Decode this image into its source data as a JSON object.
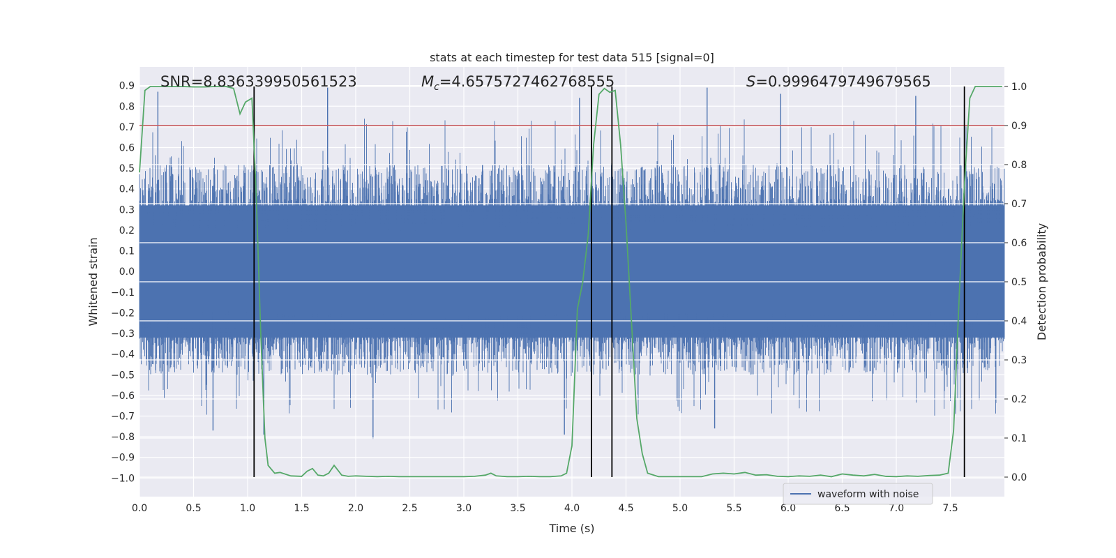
{
  "chart_data": {
    "type": "line",
    "title": "stats at each timestep for test data 515 [signal=0]",
    "xlabel": "Time (s)",
    "ylabel": "Whitened strain",
    "y2label": "Detection probability",
    "xlim": [
      0.0,
      8.0
    ],
    "ylim": [
      -1.09,
      0.99
    ],
    "y2lim": [
      -0.05,
      1.05
    ],
    "x_ticks": [
      "0.0",
      "0.5",
      "1.0",
      "1.5",
      "2.0",
      "2.5",
      "3.0",
      "3.5",
      "4.0",
      "4.5",
      "5.0",
      "5.5",
      "6.0",
      "6.5",
      "7.0",
      "7.5"
    ],
    "y_ticks": [
      "0.9",
      "0.8",
      "0.7",
      "0.6",
      "0.5",
      "0.4",
      "0.3",
      "0.2",
      "0.1",
      "0.0",
      "−0.1",
      "−0.2",
      "−0.3",
      "−0.4",
      "−0.5",
      "−0.6",
      "−0.7",
      "−0.8",
      "−0.9",
      "−1.0"
    ],
    "y2_ticks": [
      "1.0",
      "0.9",
      "0.8",
      "0.7",
      "0.6",
      "0.5",
      "0.4",
      "0.3",
      "0.2",
      "0.1",
      "0.0"
    ],
    "annotations": {
      "snr": "SNR=8.836339950561523",
      "mc_symbol": "M",
      "mc_sub": "c",
      "mc_value": "=4.6575727462768555",
      "s_symbol": "S",
      "s_value": "=0.9996479749679565"
    },
    "threshold": {
      "y2": 0.9,
      "color": "#c44e52"
    },
    "vertical_lines": [
      1.06,
      4.18,
      4.37,
      7.63
    ],
    "grid": true,
    "legend": {
      "position": "lower-right",
      "entries": [
        "waveform with noise"
      ]
    },
    "series": [
      {
        "name": "waveform with noise",
        "axis": "left",
        "color": "#4c72b0",
        "style": "dense-noise",
        "t_range": [
          0.0,
          8.0
        ],
        "core_range": [
          -0.32,
          0.32
        ],
        "spike_peaks": [
          {
            "t": 0.17,
            "y": 0.87
          },
          {
            "t": 0.68,
            "y": -0.77
          },
          {
            "t": 1.15,
            "y": -0.79
          },
          {
            "t": 1.74,
            "y": 0.89
          },
          {
            "t": 2.16,
            "y": -0.81
          },
          {
            "t": 3.93,
            "y": -0.79
          },
          {
            "t": 4.07,
            "y": 0.84
          },
          {
            "t": 5.25,
            "y": 0.89
          },
          {
            "t": 5.32,
            "y": -0.76
          },
          {
            "t": 5.93,
            "y": 0.86
          },
          {
            "t": 7.18,
            "y": 0.85
          },
          {
            "t": 7.63,
            "y": 0.81
          }
        ]
      },
      {
        "name": "",
        "axis": "right",
        "color": "#55a868",
        "x": [
          0.0,
          0.05,
          0.1,
          0.15,
          0.2,
          0.3,
          0.4,
          0.5,
          0.6,
          0.7,
          0.8,
          0.87,
          0.93,
          0.98,
          1.04,
          1.08,
          1.12,
          1.16,
          1.19,
          1.25,
          1.3,
          1.4,
          1.5,
          1.55,
          1.6,
          1.65,
          1.7,
          1.75,
          1.8,
          1.87,
          1.93,
          2.0,
          2.1,
          2.2,
          2.3,
          2.4,
          2.5,
          2.6,
          2.8,
          3.0,
          3.1,
          3.2,
          3.25,
          3.3,
          3.4,
          3.5,
          3.6,
          3.7,
          3.8,
          3.9,
          3.95,
          4.0,
          4.05,
          4.1,
          4.15,
          4.2,
          4.25,
          4.3,
          4.35,
          4.4,
          4.45,
          4.5,
          4.55,
          4.6,
          4.65,
          4.7,
          4.8,
          5.0,
          5.1,
          5.2,
          5.3,
          5.4,
          5.5,
          5.6,
          5.7,
          5.8,
          5.9,
          6.0,
          6.1,
          6.2,
          6.3,
          6.4,
          6.5,
          6.6,
          6.7,
          6.8,
          6.9,
          7.0,
          7.1,
          7.2,
          7.3,
          7.4,
          7.48,
          7.53,
          7.58,
          7.63,
          7.68,
          7.73,
          7.8,
          7.9,
          7.98
        ],
        "y": [
          0.78,
          0.99,
          1.0,
          1.0,
          1.0,
          1.0,
          1.0,
          0.999,
          0.999,
          1.0,
          1.0,
          0.995,
          0.93,
          0.96,
          0.97,
          0.72,
          0.38,
          0.1,
          0.03,
          0.01,
          0.012,
          0.003,
          0.002,
          0.015,
          0.022,
          0.005,
          0.003,
          0.01,
          0.03,
          0.005,
          0.002,
          0.003,
          0.002,
          0.001,
          0.002,
          0.001,
          0.001,
          0.001,
          0.001,
          0.001,
          0.002,
          0.005,
          0.01,
          0.003,
          0.001,
          0.001,
          0.002,
          0.001,
          0.001,
          0.003,
          0.01,
          0.08,
          0.43,
          0.5,
          0.62,
          0.85,
          0.98,
          0.995,
          0.985,
          0.99,
          0.85,
          0.65,
          0.4,
          0.15,
          0.06,
          0.01,
          0.001,
          0.001,
          0.001,
          0.001,
          0.008,
          0.01,
          0.008,
          0.012,
          0.005,
          0.006,
          0.002,
          0.001,
          0.003,
          0.002,
          0.005,
          0.001,
          0.008,
          0.005,
          0.003,
          0.007,
          0.002,
          0.001,
          0.003,
          0.002,
          0.004,
          0.005,
          0.01,
          0.12,
          0.45,
          0.75,
          0.97,
          1.0,
          1.0,
          1.0,
          1.0
        ]
      }
    ]
  }
}
